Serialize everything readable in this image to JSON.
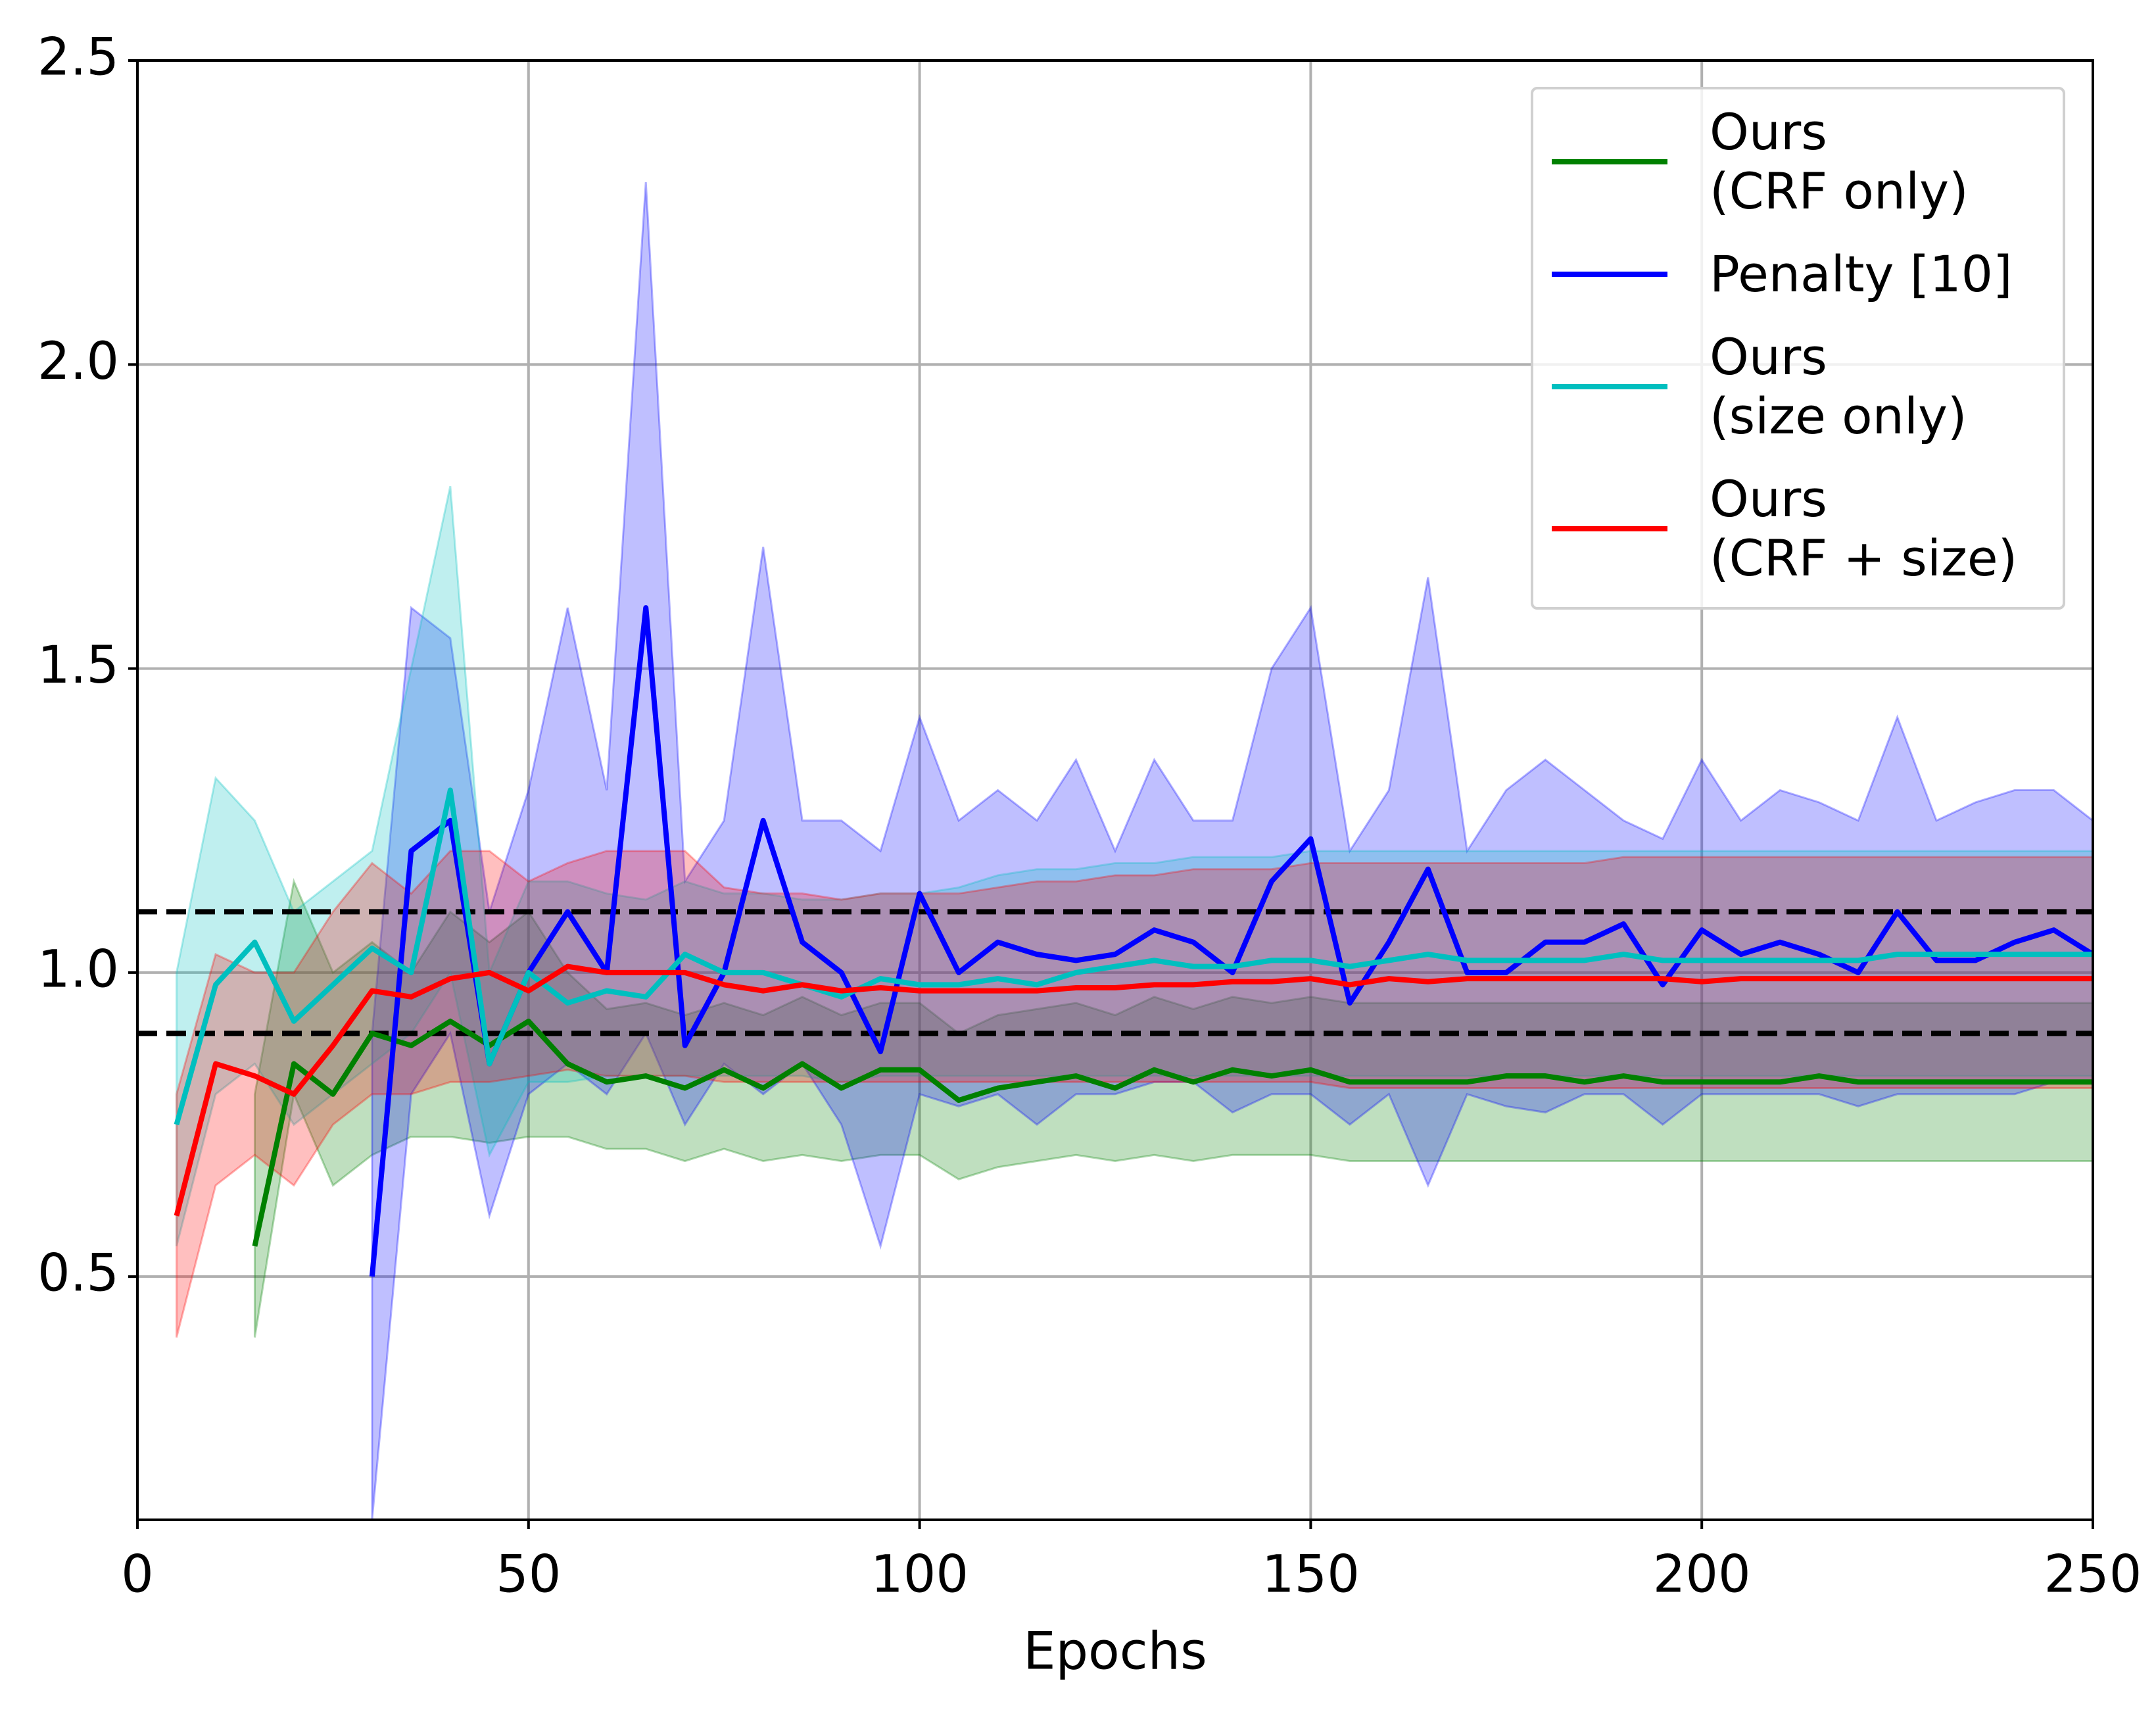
{
  "chart_data": {
    "type": "line",
    "x_label": "Epochs",
    "xlim": [
      0,
      250
    ],
    "xticks": [
      0,
      50,
      100,
      150,
      200,
      250
    ],
    "ylim": [
      0.1,
      2.5
    ],
    "yticks": [
      0.5,
      {
        "value": 1,
        "label": "1.0"
      },
      1.5,
      {
        "value": 2,
        "label": "2.0"
      },
      2.5
    ],
    "grid": true,
    "legend": "upper right",
    "hlines": [
      1.1,
      0.9
    ],
    "x": [
      0,
      5,
      10,
      15,
      20,
      25,
      30,
      35,
      40,
      45,
      50,
      55,
      60,
      65,
      70,
      75,
      80,
      85,
      90,
      95,
      100,
      105,
      110,
      115,
      120,
      125,
      130,
      135,
      140,
      145,
      150,
      155,
      160,
      165,
      170,
      175,
      180,
      185,
      190,
      195,
      200,
      205,
      210,
      215,
      220,
      225,
      230,
      235,
      240,
      245,
      250
    ],
    "series": [
      {
        "name": "Ours\n(CRF only)",
        "color": "#008000",
        "values": [
          null,
          null,
          null,
          0.55,
          0.85,
          0.8,
          0.9,
          0.88,
          0.92,
          0.88,
          0.92,
          0.85,
          0.82,
          0.83,
          0.81,
          0.84,
          0.81,
          0.85,
          0.81,
          0.84,
          0.84,
          0.79,
          0.81,
          0.82,
          0.83,
          0.81,
          0.84,
          0.82,
          0.84,
          0.83,
          0.84,
          0.82,
          0.82,
          0.82,
          0.82,
          0.83,
          0.83,
          0.82,
          0.83,
          0.82,
          0.82,
          0.82,
          0.82,
          0.83,
          0.82,
          0.82,
          0.82,
          0.82,
          0.82,
          0.82,
          0.82
        ],
        "lower": [
          null,
          null,
          null,
          0.4,
          0.8,
          0.65,
          0.7,
          0.73,
          0.73,
          0.72,
          0.73,
          0.73,
          0.71,
          0.71,
          0.69,
          0.71,
          0.69,
          0.7,
          0.69,
          0.7,
          0.7,
          0.66,
          0.68,
          0.69,
          0.7,
          0.69,
          0.7,
          0.69,
          0.7,
          0.7,
          0.7,
          0.69,
          0.69,
          0.69,
          0.69,
          0.69,
          0.69,
          0.69,
          0.69,
          0.69,
          0.69,
          0.69,
          0.69,
          0.69,
          0.69,
          0.69,
          0.69,
          0.69,
          0.69,
          0.69,
          0.69
        ],
        "upper": [
          null,
          null,
          null,
          0.8,
          1.15,
          1.0,
          1.05,
          1.0,
          1.1,
          1.05,
          1.1,
          1.0,
          0.94,
          0.95,
          0.93,
          0.95,
          0.93,
          0.96,
          0.93,
          0.95,
          0.95,
          0.9,
          0.93,
          0.94,
          0.95,
          0.93,
          0.96,
          0.94,
          0.96,
          0.95,
          0.96,
          0.95,
          0.95,
          0.95,
          0.95,
          0.95,
          0.95,
          0.95,
          0.95,
          0.95,
          0.95,
          0.95,
          0.95,
          0.95,
          0.95,
          0.95,
          0.95,
          0.95,
          0.95,
          0.95,
          0.95
        ]
      },
      {
        "name": "Penalty [10]",
        "color": "#0000ff",
        "values": [
          null,
          null,
          null,
          null,
          null,
          null,
          0.5,
          1.2,
          1.25,
          0.85,
          1.0,
          1.1,
          1.0,
          1.6,
          0.88,
          1.0,
          1.25,
          1.05,
          1.0,
          0.87,
          1.13,
          1.0,
          1.05,
          1.03,
          1.02,
          1.03,
          1.07,
          1.05,
          1.0,
          1.15,
          1.22,
          0.95,
          1.05,
          1.17,
          1.0,
          1.0,
          1.05,
          1.05,
          1.08,
          0.98,
          1.07,
          1.03,
          1.05,
          1.03,
          1.0,
          1.1,
          1.02,
          1.02,
          1.05,
          1.07,
          1.03
        ],
        "lower": [
          null,
          null,
          null,
          null,
          null,
          null,
          0.1,
          0.8,
          0.9,
          0.6,
          0.8,
          0.85,
          0.8,
          0.9,
          0.75,
          0.85,
          0.8,
          0.85,
          0.75,
          0.55,
          0.8,
          0.78,
          0.8,
          0.75,
          0.8,
          0.8,
          0.82,
          0.82,
          0.77,
          0.8,
          0.8,
          0.75,
          0.8,
          0.65,
          0.8,
          0.78,
          0.77,
          0.8,
          0.8,
          0.75,
          0.8,
          0.8,
          0.8,
          0.8,
          0.78,
          0.8,
          0.8,
          0.8,
          0.8,
          0.82,
          0.82
        ],
        "upper": [
          null,
          null,
          null,
          null,
          null,
          null,
          0.9,
          1.6,
          1.55,
          1.1,
          1.3,
          1.6,
          1.3,
          2.3,
          1.15,
          1.25,
          1.7,
          1.25,
          1.25,
          1.2,
          1.42,
          1.25,
          1.3,
          1.25,
          1.35,
          1.2,
          1.35,
          1.25,
          1.25,
          1.5,
          1.6,
          1.2,
          1.3,
          1.65,
          1.2,
          1.3,
          1.35,
          1.3,
          1.25,
          1.22,
          1.35,
          1.25,
          1.3,
          1.28,
          1.25,
          1.42,
          1.25,
          1.28,
          1.3,
          1.3,
          1.25
        ]
      },
      {
        "name": "Ours\n(size only)",
        "color": "#00bfbf",
        "values": [
          null,
          0.75,
          0.98,
          1.05,
          0.92,
          0.98,
          1.04,
          1.0,
          1.3,
          0.85,
          1.0,
          0.95,
          0.97,
          0.96,
          1.03,
          1.0,
          1.0,
          0.98,
          0.96,
          0.99,
          0.98,
          0.98,
          0.99,
          0.98,
          1.0,
          1.01,
          1.02,
          1.01,
          1.01,
          1.02,
          1.02,
          1.01,
          1.02,
          1.03,
          1.02,
          1.02,
          1.02,
          1.02,
          1.03,
          1.02,
          1.02,
          1.02,
          1.02,
          1.02,
          1.02,
          1.03,
          1.03,
          1.03,
          1.03,
          1.03,
          1.03
        ],
        "lower": [
          null,
          0.55,
          0.8,
          0.85,
          0.75,
          0.8,
          0.85,
          0.9,
          1.0,
          0.7,
          0.82,
          0.82,
          0.83,
          0.83,
          0.83,
          0.83,
          0.83,
          0.83,
          0.82,
          0.83,
          0.83,
          0.83,
          0.83,
          0.83,
          0.83,
          0.83,
          0.83,
          0.83,
          0.83,
          0.83,
          0.83,
          0.83,
          0.83,
          0.83,
          0.83,
          0.83,
          0.83,
          0.83,
          0.83,
          0.83,
          0.83,
          0.83,
          0.83,
          0.83,
          0.83,
          0.83,
          0.83,
          0.83,
          0.83,
          0.83,
          0.83
        ],
        "upper": [
          null,
          1.0,
          1.32,
          1.25,
          1.1,
          1.15,
          1.2,
          1.5,
          1.8,
          1.0,
          1.15,
          1.15,
          1.13,
          1.12,
          1.15,
          1.13,
          1.13,
          1.12,
          1.12,
          1.13,
          1.13,
          1.14,
          1.16,
          1.17,
          1.17,
          1.18,
          1.18,
          1.19,
          1.19,
          1.19,
          1.2,
          1.2,
          1.2,
          1.2,
          1.2,
          1.2,
          1.2,
          1.2,
          1.2,
          1.2,
          1.2,
          1.2,
          1.2,
          1.2,
          1.2,
          1.2,
          1.2,
          1.2,
          1.2,
          1.2,
          1.2
        ]
      },
      {
        "name": "Ours\n(CRF + size)",
        "color": "#ff0000",
        "values": [
          null,
          0.6,
          0.85,
          0.83,
          0.8,
          0.88,
          0.97,
          0.96,
          0.99,
          1.0,
          0.97,
          1.01,
          1.0,
          1.0,
          1.0,
          0.98,
          0.97,
          0.98,
          0.97,
          0.975,
          0.97,
          0.97,
          0.97,
          0.97,
          0.975,
          0.975,
          0.98,
          0.98,
          0.985,
          0.985,
          0.99,
          0.98,
          0.99,
          0.985,
          0.99,
          0.99,
          0.99,
          0.99,
          0.99,
          0.99,
          0.985,
          0.99,
          0.99,
          0.99,
          0.99,
          0.99,
          0.99,
          0.99,
          0.99,
          0.99,
          0.99
        ],
        "lower": [
          null,
          0.4,
          0.65,
          0.7,
          0.65,
          0.75,
          0.8,
          0.8,
          0.82,
          0.82,
          0.83,
          0.84,
          0.83,
          0.83,
          0.83,
          0.82,
          0.82,
          0.82,
          0.82,
          0.82,
          0.82,
          0.82,
          0.82,
          0.82,
          0.82,
          0.82,
          0.82,
          0.82,
          0.82,
          0.82,
          0.82,
          0.81,
          0.81,
          0.81,
          0.81,
          0.81,
          0.81,
          0.81,
          0.81,
          0.81,
          0.81,
          0.81,
          0.81,
          0.81,
          0.81,
          0.81,
          0.81,
          0.81,
          0.81,
          0.81,
          0.81
        ],
        "upper": [
          null,
          0.8,
          1.03,
          1.0,
          1.0,
          1.1,
          1.18,
          1.13,
          1.2,
          1.2,
          1.15,
          1.18,
          1.2,
          1.2,
          1.2,
          1.14,
          1.13,
          1.13,
          1.12,
          1.13,
          1.13,
          1.13,
          1.14,
          1.15,
          1.15,
          1.16,
          1.16,
          1.17,
          1.17,
          1.17,
          1.18,
          1.18,
          1.18,
          1.18,
          1.18,
          1.18,
          1.18,
          1.18,
          1.19,
          1.19,
          1.19,
          1.19,
          1.19,
          1.19,
          1.19,
          1.19,
          1.19,
          1.19,
          1.19,
          1.19,
          1.19
        ]
      }
    ]
  }
}
